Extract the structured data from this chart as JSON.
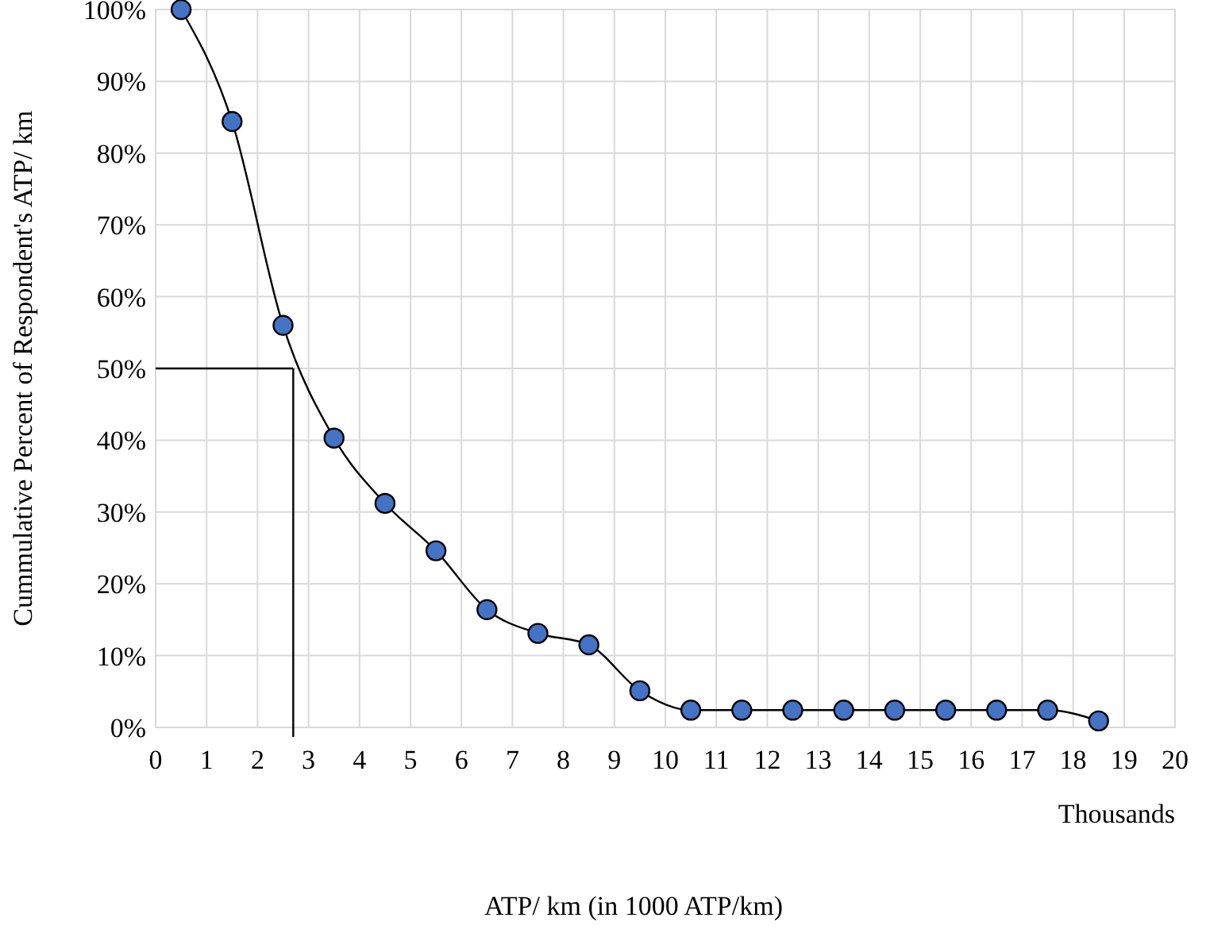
{
  "chart_data": {
    "type": "line",
    "xlabel": "ATP/ km (in 1000 ATP/km)",
    "ylabel": "Cummulative Percent of Respondent's ATP/ km",
    "annotations": [
      "Thousands"
    ],
    "x": [
      0.5,
      1.5,
      2.5,
      3.5,
      4.5,
      5.5,
      6.5,
      7.5,
      8.5,
      9.5,
      10.5,
      11.5,
      12.5,
      13.5,
      14.5,
      15.5,
      16.5,
      17.5,
      18.5
    ],
    "series": [
      {
        "color": "#4472c4",
        "values": [
          100,
          84.4,
          56,
          40.3,
          31.2,
          24.6,
          16.4,
          13.1,
          11.5,
          5.1,
          2.4,
          2.4,
          2.4,
          2.4,
          2.4,
          2.4,
          2.4,
          2.4,
          0.9
        ],
        "marker": "circle"
      }
    ],
    "ref_lines": [
      {
        "axis": "y",
        "value": 50,
        "color": "#000000"
      },
      {
        "axis": "x",
        "value": 2.7,
        "color": "#000000"
      }
    ],
    "xlim": [
      0,
      20
    ],
    "xticks": [
      0,
      1,
      2,
      3,
      4,
      5,
      6,
      7,
      8,
      9,
      10,
      11,
      12,
      13,
      14,
      15,
      16,
      17,
      18,
      19,
      20
    ],
    "ylim": [
      0,
      100
    ],
    "yticks": [
      {
        "value": 0,
        "label": "0%"
      },
      {
        "value": 10,
        "label": "10%"
      },
      {
        "value": 20,
        "label": "20%"
      },
      {
        "value": 30,
        "label": "30%"
      },
      {
        "value": 40,
        "label": "40%"
      },
      {
        "value": 50,
        "label": "50%"
      },
      {
        "value": 60,
        "label": "60%"
      },
      {
        "value": 70,
        "label": "70%"
      },
      {
        "value": 80,
        "label": "80%"
      },
      {
        "value": 90,
        "label": "90%"
      },
      {
        "value": 100,
        "label": "100%"
      }
    ],
    "grid": true
  }
}
